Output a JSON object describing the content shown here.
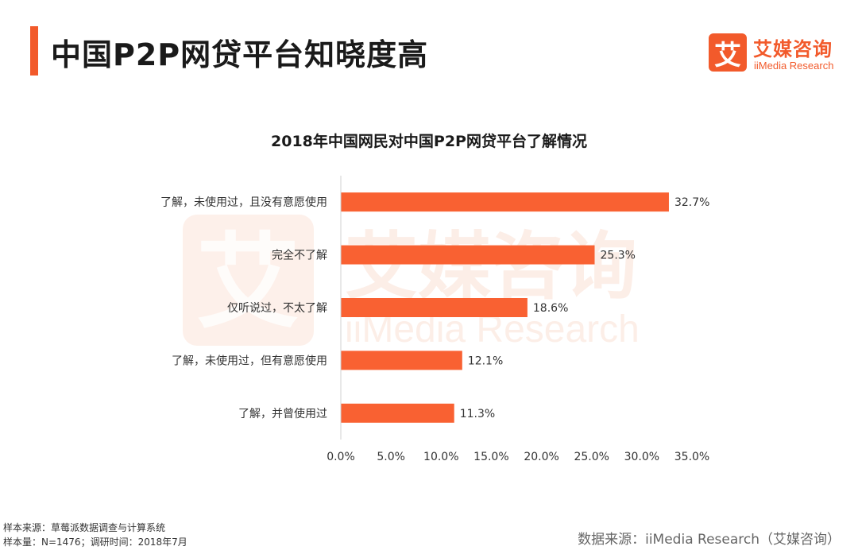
{
  "page": {
    "title": "中国P2P网贷平台知晓度高"
  },
  "brand": {
    "logo_glyph": "艾",
    "name_cn": "艾媒咨询",
    "name_en": "iiMedia Research",
    "accent_color": "#f25a2b",
    "bar_color": "#f96132"
  },
  "chart_data": {
    "type": "bar",
    "orientation": "horizontal",
    "title": "2018年中国网民对中国P2P网贷平台了解情况",
    "categories": [
      "了解，未使用过，且没有意愿使用",
      "完全不了解",
      "仅听说过，不太了解",
      "了解，未使用过，但有意愿使用",
      "了解，并曾使用过"
    ],
    "values": [
      32.7,
      25.3,
      18.6,
      12.1,
      11.3
    ],
    "value_labels": [
      "32.7%",
      "25.3%",
      "18.6%",
      "12.1%",
      "11.3%"
    ],
    "xlim": [
      0,
      35
    ],
    "xticks": [
      0,
      5,
      10,
      15,
      20,
      25,
      30,
      35
    ],
    "xtick_labels": [
      "0.0%",
      "5.0%",
      "10.0%",
      "15.0%",
      "20.0%",
      "25.0%",
      "30.0%",
      "35.0%"
    ],
    "xlabel": "",
    "ylabel": "",
    "grid": false,
    "legend": "none"
  },
  "footer": {
    "sample_source": "样本来源：草莓派数据调查与计算系统",
    "sample_size": "样本量：N=1476；调研时间：2018年7月",
    "data_source": "数据来源：iiMedia Research（艾媒咨询）"
  }
}
